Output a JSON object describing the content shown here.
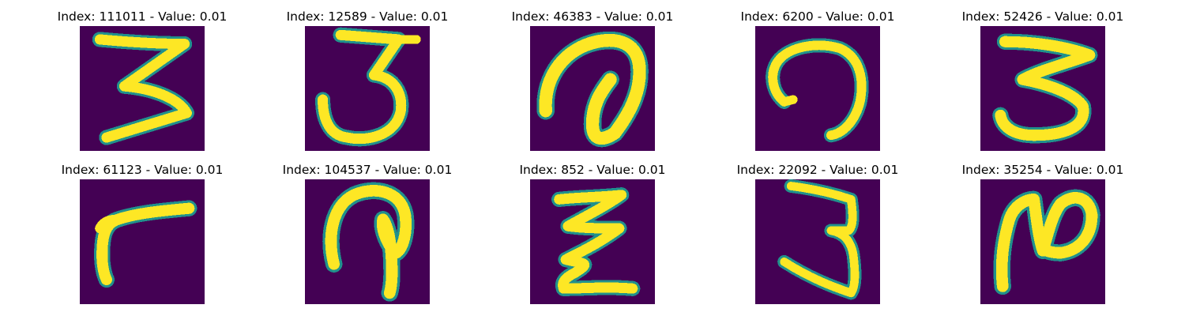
{
  "colormap": {
    "background": "#440154",
    "mid": "#21918c",
    "foreground": "#fde725"
  },
  "panels": [
    {
      "title": "Index: 111011 - Value: 0.01",
      "glyph": "digit-3-slanted"
    },
    {
      "title": "Index: 12589 - Value: 0.01",
      "glyph": "digit-3-open-top"
    },
    {
      "title": "Index: 46383 - Value: 0.01",
      "glyph": "at-sign-loop"
    },
    {
      "title": "Index: 6200 - Value: 0.01",
      "glyph": "open-circle-hook"
    },
    {
      "title": "Index: 52426 - Value: 0.01",
      "glyph": "digit-3-wide"
    },
    {
      "title": "Index: 61123 - Value: 0.01",
      "glyph": "digit-7-tilted"
    },
    {
      "title": "Index: 104537 - Value: 0.01",
      "glyph": "arch-with-stem"
    },
    {
      "title": "Index: 852 - Value: 0.01",
      "glyph": "zigzag-z"
    },
    {
      "title": "Index: 22092 - Value: 0.01",
      "glyph": "digit-3-narrow"
    },
    {
      "title": "Index: 35254 - Value: 0.01",
      "glyph": "digit-2-script"
    }
  ]
}
